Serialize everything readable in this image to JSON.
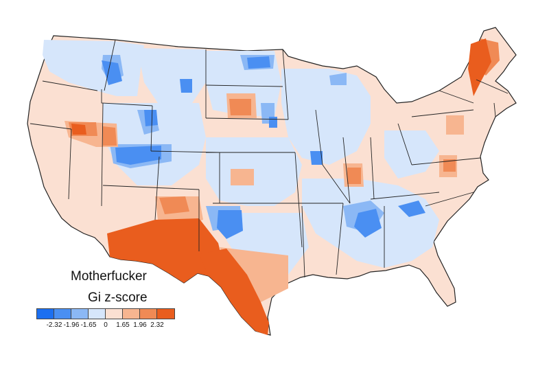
{
  "title": "Motherfucker",
  "subtitle": "Gi z-score",
  "legend": {
    "colors": [
      "#1c6ff0",
      "#4a8ff2",
      "#8bb8f5",
      "#d6e6fb",
      "#fbe0d2",
      "#f7b590",
      "#f08a55",
      "#e95d1e"
    ],
    "labels": [
      "-2.32",
      "-1.96",
      "-1.65",
      "0",
      "1.65",
      "1.96",
      "2.32"
    ]
  },
  "colors": {
    "hot_strong": "#e95d1e",
    "hot_medium": "#f08a55",
    "hot_light": "#f7b590",
    "neutral_warm": "#fbe0d2",
    "neutral_cool": "#d6e6fb",
    "cold_light": "#8bb8f5",
    "cold_medium": "#4a8ff2",
    "cold_strong": "#1c6ff0",
    "border": "#222222"
  }
}
